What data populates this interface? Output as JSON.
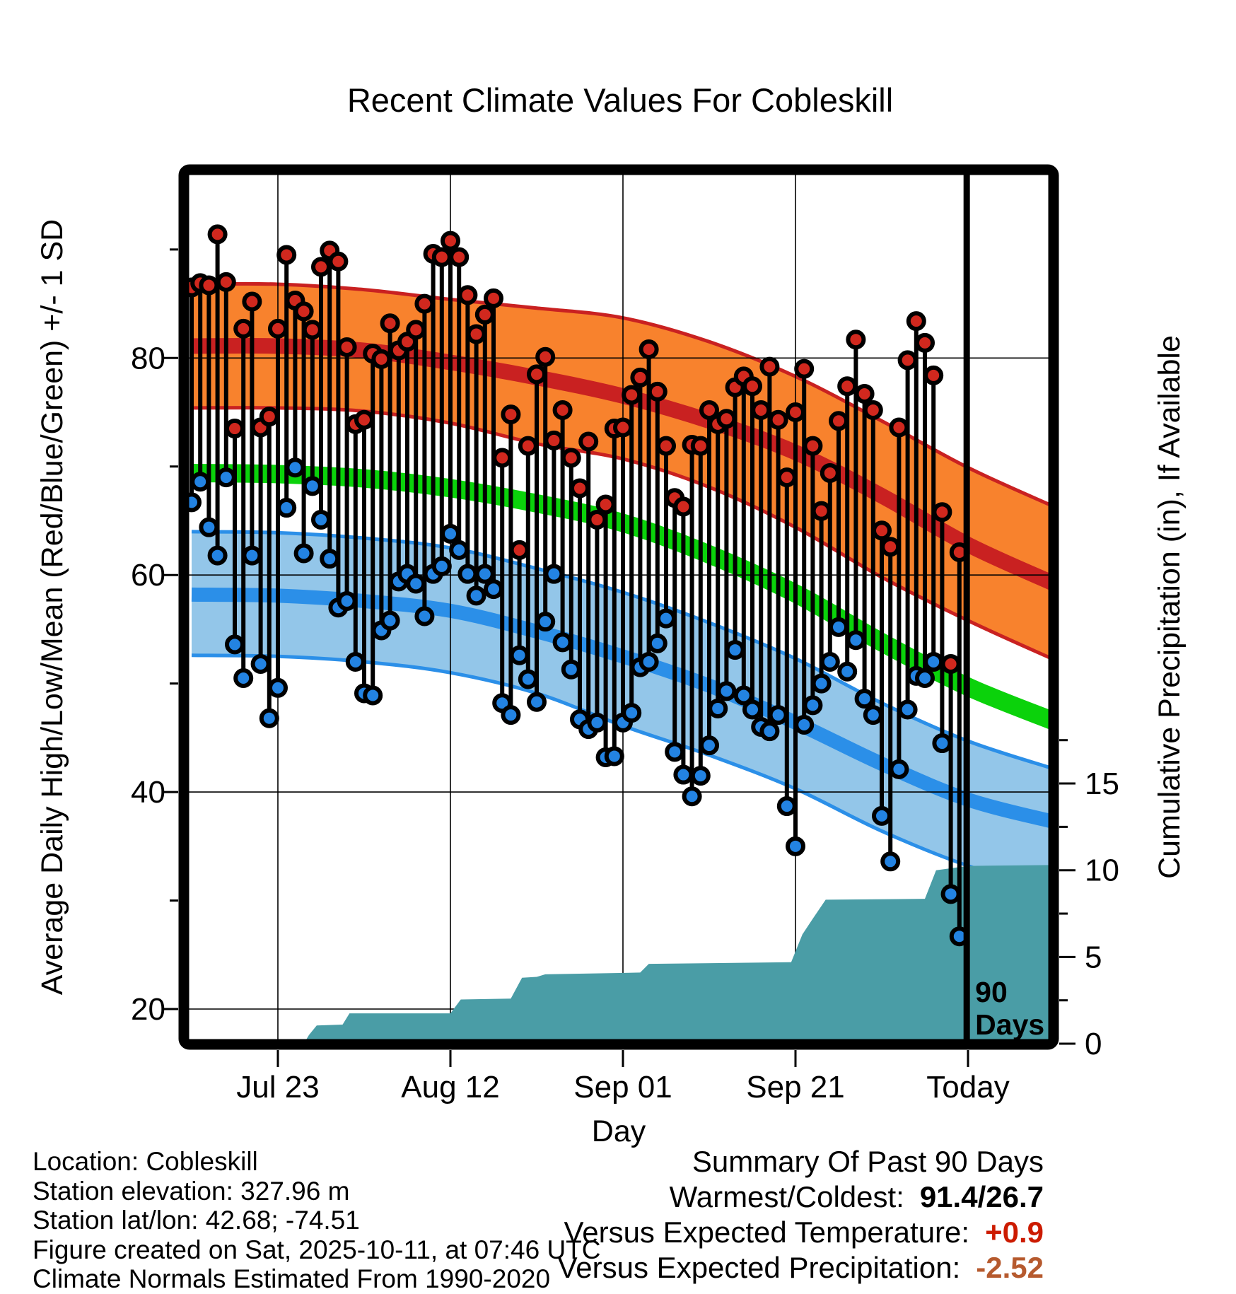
{
  "title": "Recent Climate Values For Cobleskill",
  "axes": {
    "x_label": "Day",
    "y_left_label": "Average Daily High/Low/Mean (Red/Blue/Green) +/- 1 SD",
    "y_right_label": "Cumulative Precipitation (in), If Available",
    "x_tick_labels": [
      "Jul 23",
      "Aug 12",
      "Sep 01",
      "Sep 21",
      "Today"
    ],
    "x_tick_days": [
      10,
      30,
      50,
      70,
      90
    ],
    "y_left_ticks": [
      20,
      40,
      60,
      80
    ],
    "y_left_minor_ticks": [
      30,
      50,
      70,
      90
    ],
    "y_right_ticks": [
      0,
      5,
      10,
      15
    ],
    "y_right_minor_ticks": [
      2.5,
      7.5,
      12.5,
      17.5
    ],
    "y_left_range": [
      17.3,
      97.6
    ],
    "y_right_range": [
      0,
      50
    ],
    "x_range_days": [
      -0.5,
      99.7
    ],
    "grid": "on"
  },
  "annotation": {
    "ninety_day_line_day": 89.85,
    "label_line1": "90",
    "label_line2": "Days"
  },
  "chart_data": {
    "type": "composite: stem-scatter + normals bands (line/area) + cumulative precipitation area",
    "title": "Recent Climate Values For Cobleskill",
    "xlabel": "Day",
    "ylabel_left": "Average Daily High/Low/Mean (Red/Blue/Green) +/- 1 SD",
    "ylabel_right": "Cumulative Precipitation (in), If Available",
    "legend_position": "none",
    "day0_is": "90 days before Today (figure spans ~Jul 13 - Oct 10, plus ~10 projected days)",
    "daily_high_F": [
      86.5,
      86.9,
      86.7,
      91.4,
      87.0,
      73.5,
      82.7,
      85.2,
      73.6,
      74.6,
      82.7,
      89.5,
      85.3,
      84.3,
      82.6,
      88.4,
      89.9,
      88.9,
      81.0,
      73.9,
      74.3,
      80.4,
      79.9,
      83.2,
      80.7,
      81.5,
      82.6,
      85.0,
      89.6,
      89.3,
      90.8,
      89.3,
      85.8,
      82.2,
      84.0,
      85.5,
      70.8,
      74.8,
      62.3,
      71.9,
      78.5,
      80.1,
      72.4,
      75.2,
      70.8,
      68.0,
      72.3,
      65.1,
      66.5,
      73.5,
      73.6,
      76.6,
      78.2,
      80.8,
      76.9,
      71.9,
      67.1,
      66.3,
      72.0,
      71.9,
      75.2,
      73.9,
      74.4,
      77.3,
      78.3,
      77.4,
      75.2,
      79.2,
      74.3,
      69.0,
      75.0,
      79.0,
      71.9,
      65.9,
      69.4,
      74.2,
      77.4,
      81.7,
      76.7,
      75.2,
      64.1,
      62.6,
      73.6,
      79.8,
      83.4,
      81.4,
      78.4,
      65.8,
      51.8,
      62.1
    ],
    "daily_low_F": [
      66.7,
      68.6,
      64.4,
      61.8,
      69.0,
      53.6,
      50.5,
      61.8,
      51.8,
      46.8,
      49.6,
      66.2,
      69.9,
      62.0,
      68.2,
      65.1,
      61.5,
      57.0,
      57.6,
      52.0,
      49.1,
      48.9,
      54.9,
      55.8,
      59.4,
      60.1,
      59.2,
      56.2,
      60.1,
      60.8,
      63.8,
      62.3,
      60.1,
      58.1,
      60.1,
      58.7,
      48.2,
      47.1,
      52.6,
      50.4,
      48.3,
      55.7,
      60.1,
      53.8,
      51.3,
      46.7,
      45.8,
      46.4,
      43.2,
      43.3,
      46.4,
      47.3,
      51.5,
      52.0,
      53.7,
      56.0,
      43.7,
      41.6,
      39.6,
      41.5,
      44.3,
      47.7,
      49.3,
      53.1,
      48.9,
      47.6,
      46.0,
      45.6,
      47.1,
      38.7,
      35.0,
      46.2,
      48.0,
      50.0,
      52.0,
      55.2,
      51.1,
      54.0,
      48.6,
      47.1,
      37.8,
      33.6,
      42.1,
      47.6,
      50.7,
      50.5,
      52.0,
      44.5,
      30.6,
      26.7
    ],
    "normals": {
      "days": [
        0,
        10,
        20,
        30,
        40,
        50,
        60,
        70,
        80,
        90,
        99.7
      ],
      "high_upper": [
        86.8,
        86.8,
        86.3,
        85.4,
        84.6,
        83.7,
        81.5,
        78.3,
        74.2,
        69.9,
        66.4
      ],
      "high_mean": [
        81.1,
        81.1,
        80.7,
        79.6,
        78.2,
        76.5,
        74.2,
        71.3,
        67.3,
        62.8,
        59.3
      ],
      "high_lower": [
        75.4,
        75.4,
        75.1,
        74.0,
        72.1,
        70.7,
        68.1,
        64.4,
        59.8,
        55.8,
        52.3
      ],
      "mean": [
        69.4,
        69.3,
        68.9,
        68.0,
        66.6,
        64.8,
        61.9,
        58.3,
        53.8,
        49.7,
        46.6
      ],
      "low_upper": [
        64.0,
        63.9,
        63.4,
        62.5,
        60.6,
        58.4,
        55.6,
        52.3,
        48.2,
        44.7,
        42.2
      ],
      "low_mean": [
        58.2,
        58.1,
        57.6,
        56.7,
        54.8,
        52.5,
        49.8,
        46.4,
        42.6,
        39.3,
        37.3
      ],
      "low_lower": [
        52.6,
        52.5,
        52.0,
        51.0,
        49.1,
        46.1,
        43.4,
        40.3,
        36.4,
        33.2,
        31.0
      ]
    },
    "cumulative_precip_in": {
      "days": [
        0,
        13,
        13.6,
        14.5,
        17.5,
        18.3,
        30,
        31.2,
        37,
        38.3,
        40,
        41,
        52,
        53,
        69.5,
        70.8,
        72,
        73.5,
        85,
        86.3,
        90,
        99.7
      ],
      "values": [
        0,
        0,
        0.5,
        1.05,
        1.1,
        1.75,
        1.75,
        2.55,
        2.6,
        3.8,
        3.85,
        4.0,
        4.1,
        4.6,
        4.7,
        6.3,
        7.2,
        8.3,
        8.35,
        10.0,
        10.25,
        10.3
      ]
    }
  },
  "footer": {
    "lines": [
      "Location: Cobleskill",
      "Station elevation: 327.96 m",
      "Station lat/lon: 42.68; -74.51",
      "Figure created on Sat, 2025-10-11, at 07:46 UTC",
      "Climate Normals Estimated From 1990-2020"
    ]
  },
  "summary": {
    "heading": "Summary Of Past 90 Days",
    "rows": [
      {
        "label": "Warmest/Coldest:",
        "value": "91.4/26.7",
        "color": "#000000"
      },
      {
        "label": "Versus Expected Temperature:",
        "value": "+0.9",
        "color": "#CC1B00"
      },
      {
        "label": "Versus Expected Precipitation:",
        "value": "-2.52",
        "color": "#B65A2E"
      }
    ]
  },
  "colors": {
    "high_band_fill": "#F8822D",
    "high_band_edge": "#C92121",
    "high_mean_line": "#C92121",
    "mean_line": "#0BD20B",
    "low_band_fill": "#93C6E9",
    "low_band_edge": "#2B8FE8",
    "low_mean_line": "#2B8FE8",
    "precip_fill": "#4A9DA6",
    "dot_high": "#D1281E",
    "dot_low": "#2383E2",
    "stem": "#000000",
    "grid": "#000000",
    "frame": "#000000"
  }
}
